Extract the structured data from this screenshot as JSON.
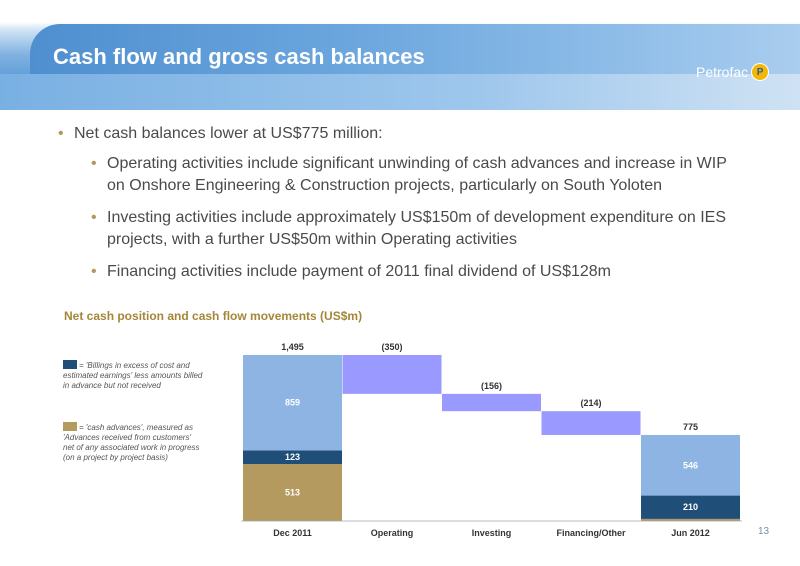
{
  "slide": {
    "title": "Cash flow and gross cash balances",
    "logo_text": "Petrofac",
    "logo_mark": "P",
    "page_number": "13",
    "colors": {
      "accent_blue": "#5d9bd7",
      "bullet_gold": "#b8955a"
    }
  },
  "bullets": {
    "main": "Net cash balances lower at US$775 million:",
    "sub": [
      "Operating activities include significant unwinding of cash advances and increase in WIP on Onshore Engineering & Construction projects, particularly on South Yoloten",
      "Investing activities include approximately US$150m of development expenditure on IES projects, with a further US$50m within Operating activities",
      "Financing activities include payment of 2011 final dividend of US$128m"
    ]
  },
  "legend": [
    {
      "color": "#1f4e79",
      "text": "= 'Billings in excess of cost and estimated earnings' less amounts billed in advance but not received"
    },
    {
      "color": "#b49a5e",
      "text": "= 'cash advances', measured as 'Advances received from customers' net of any associated work in progress (on a project by project basis)"
    }
  ],
  "chart_data": {
    "type": "bar",
    "title": "Net cash position and cash flow movements (US$m)",
    "categories": [
      "Dec 2011",
      "Operating",
      "Investing",
      "Financing/Other",
      "Jun 2012"
    ],
    "stacked_bars": [
      {
        "category": "Dec 2011",
        "total": 1495,
        "total_label": "1,495",
        "segments": [
          {
            "series": "cash_advances",
            "value": 513,
            "label": "513"
          },
          {
            "series": "billings_in_excess",
            "value": 123,
            "label": "123"
          },
          {
            "series": "other_cash",
            "value": 859,
            "label": "859"
          }
        ]
      },
      {
        "category": "Jun 2012",
        "total": 775,
        "total_label": "775",
        "segments": [
          {
            "series": "cash_advances",
            "value": 19,
            "label": "19"
          },
          {
            "series": "billings_in_excess",
            "value": 210,
            "label": "210"
          },
          {
            "series": "other_cash",
            "value": 546,
            "label": "546"
          }
        ]
      }
    ],
    "movements": [
      {
        "category": "Operating",
        "value": -350,
        "label": "(350)"
      },
      {
        "category": "Investing",
        "value": -156,
        "label": "(156)"
      },
      {
        "category": "Financing/Other",
        "value": -214,
        "label": "(214)"
      }
    ],
    "colors": {
      "other_cash": "#8db4e2",
      "billings_in_excess": "#1f4e79",
      "cash_advances": "#b49a5e",
      "movement": "#9999ff"
    },
    "ylim": [
      0,
      1495
    ],
    "grid": false,
    "legend_position": "left"
  }
}
